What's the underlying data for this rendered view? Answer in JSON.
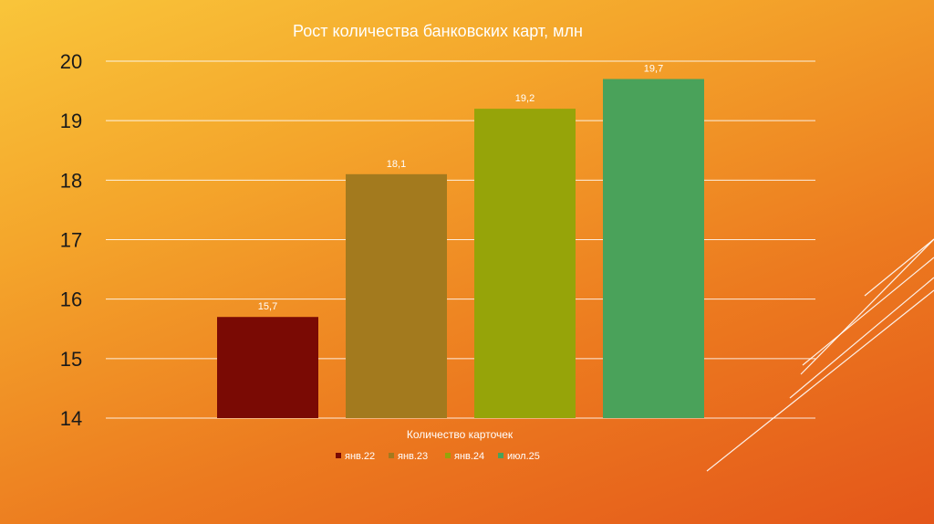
{
  "chart_data": {
    "type": "bar",
    "title": "Рост количества банковских карт, млн",
    "xlabel": "Количество карточек",
    "ylabel": "",
    "ylim": [
      14,
      20
    ],
    "yticks": [
      14,
      15,
      16,
      17,
      18,
      19,
      20
    ],
    "categories": [
      "янв.22",
      "янв.23",
      "янв.24",
      "июл.25"
    ],
    "values": [
      15.7,
      18.1,
      19.2,
      19.7
    ],
    "value_labels": [
      "15,7",
      "18,1",
      "19,2",
      "19,7"
    ],
    "colors": [
      "#7a0a04",
      "#a37a1e",
      "#96a409",
      "#4aa25a"
    ],
    "legend": [
      "янв.22",
      "янв.23",
      "янв.24",
      "июл.25"
    ],
    "legend_position": "bottom",
    "grid": true
  }
}
